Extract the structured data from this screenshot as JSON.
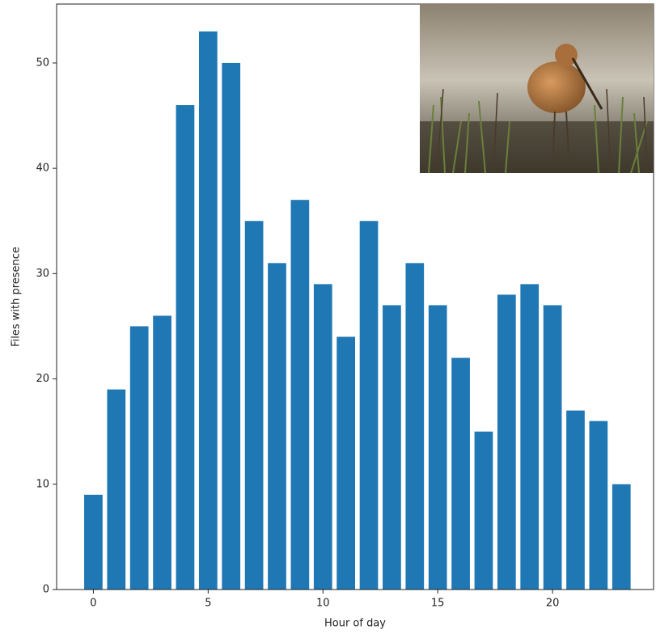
{
  "chart_data": {
    "type": "bar",
    "x_label": "Hour of day",
    "y_label": "Files with presence",
    "x": [
      0,
      1,
      2,
      3,
      4,
      5,
      6,
      7,
      8,
      9,
      10,
      11,
      12,
      13,
      14,
      15,
      16,
      17,
      18,
      19,
      20,
      21,
      22,
      23
    ],
    "values": [
      9,
      19,
      25,
      26,
      46,
      53,
      50,
      35,
      31,
      37,
      29,
      24,
      35,
      27,
      31,
      27,
      22,
      15,
      28,
      29,
      27,
      17,
      16,
      10
    ],
    "color": "#1f77b4",
    "bar_width": 0.8,
    "xlim": [
      -1.6,
      24.4
    ],
    "xticks": [
      0,
      5,
      10,
      15,
      20
    ],
    "ylim": [
      0,
      55.6
    ],
    "yticks": [
      0,
      10,
      20,
      30,
      40,
      50
    ],
    "grid": false
  }
}
